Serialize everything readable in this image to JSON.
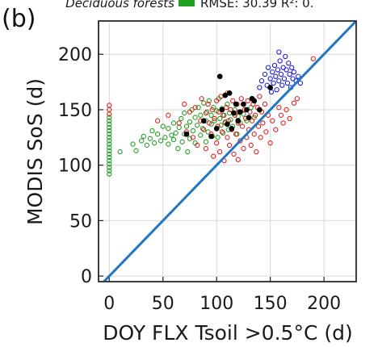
{
  "chart_data": {
    "type": "scatter",
    "panel_label": "(b)",
    "xlabel": "DOY FLX Tsoil >0.5°C (d)",
    "ylabel": "MODIS SoS (d)",
    "xlim": [
      -10,
      230
    ],
    "ylim": [
      -5,
      230
    ],
    "x_ticks": [
      0,
      50,
      100,
      150,
      200
    ],
    "y_ticks": [
      0,
      50,
      100,
      150,
      200
    ],
    "grid": true,
    "legend": {
      "placement": "top-right",
      "partial_text": "Deciduous forests",
      "stats_text": "RMSE: 30.39  R²: 0.",
      "swatch_color": "#1fa01f"
    },
    "one_to_one_line": {
      "color": "#1f77c4",
      "x": [
        -10,
        230
      ],
      "y": [
        -10,
        230
      ]
    },
    "series": [
      {
        "color": "#22a022",
        "marker": "open-circle",
        "points": [
          [
            0,
            92
          ],
          [
            0,
            95
          ],
          [
            0,
            98
          ],
          [
            0,
            101
          ],
          [
            0,
            104
          ],
          [
            0,
            107
          ],
          [
            0,
            110
          ],
          [
            0,
            113
          ],
          [
            0,
            116
          ],
          [
            0,
            119
          ],
          [
            0,
            122
          ],
          [
            0,
            125
          ],
          [
            0,
            128
          ],
          [
            0,
            131
          ],
          [
            0,
            134
          ],
          [
            0,
            137
          ],
          [
            0,
            140
          ],
          [
            0,
            143
          ],
          [
            10,
            112
          ],
          [
            22,
            119
          ],
          [
            25,
            113
          ],
          [
            30,
            122
          ],
          [
            32,
            126
          ],
          [
            35,
            118
          ],
          [
            38,
            124
          ],
          [
            40,
            131
          ],
          [
            42,
            120
          ],
          [
            45,
            128
          ],
          [
            48,
            122
          ],
          [
            50,
            135
          ],
          [
            52,
            125
          ],
          [
            55,
            119
          ],
          [
            55,
            133
          ],
          [
            58,
            127
          ],
          [
            60,
            123
          ],
          [
            60,
            138
          ],
          [
            62,
            129
          ],
          [
            64,
            115
          ],
          [
            65,
            134
          ],
          [
            67,
            142
          ],
          [
            68,
            121
          ],
          [
            70,
            128
          ],
          [
            70,
            147
          ],
          [
            72,
            135
          ],
          [
            73,
            112
          ],
          [
            75,
            124
          ],
          [
            75,
            139
          ],
          [
            77,
            150
          ],
          [
            78,
            131
          ],
          [
            80,
            120
          ],
          [
            80,
            143
          ],
          [
            82,
            136
          ],
          [
            83,
            152
          ],
          [
            85,
            127
          ],
          [
            85,
            145
          ],
          [
            87,
            133
          ],
          [
            88,
            156
          ],
          [
            90,
            121
          ],
          [
            90,
            140
          ],
          [
            91,
            148
          ],
          [
            92,
            130
          ],
          [
            93,
            158
          ],
          [
            95,
            137
          ],
          [
            95,
            145
          ],
          [
            96,
            126
          ],
          [
            97,
            152
          ],
          [
            98,
            140
          ],
          [
            100,
            133
          ],
          [
            100,
            149
          ],
          [
            101,
            125
          ],
          [
            102,
            160
          ],
          [
            103,
            142
          ],
          [
            104,
            136
          ],
          [
            105,
            151
          ],
          [
            106,
            129
          ],
          [
            107,
            145
          ],
          [
            108,
            139
          ],
          [
            110,
            155
          ],
          [
            111,
            132
          ],
          [
            112,
            147
          ],
          [
            113,
            141
          ],
          [
            115,
            135
          ],
          [
            117,
            150
          ],
          [
            119,
            128
          ],
          [
            120,
            144
          ],
          [
            122,
            138
          ],
          [
            125,
            146
          ],
          [
            128,
            140
          ],
          [
            132,
            152
          ],
          [
            135,
            143
          ]
        ]
      },
      {
        "color": "#e02020",
        "marker": "open-circle",
        "points": [
          [
            0,
            146
          ],
          [
            0,
            150
          ],
          [
            0,
            154
          ],
          [
            45,
            140
          ],
          [
            55,
            145
          ],
          [
            65,
            138
          ],
          [
            70,
            155
          ],
          [
            72,
            130
          ],
          [
            75,
            148
          ],
          [
            78,
            125
          ],
          [
            80,
            152
          ],
          [
            82,
            118
          ],
          [
            85,
            140
          ],
          [
            86,
            160
          ],
          [
            88,
            132
          ],
          [
            90,
            147
          ],
          [
            90,
            115
          ],
          [
            92,
            155
          ],
          [
            93,
            138
          ],
          [
            95,
            128
          ],
          [
            96,
            150
          ],
          [
            97,
            108
          ],
          [
            98,
            142
          ],
          [
            100,
            158
          ],
          [
            100,
            120
          ],
          [
            101,
            135
          ],
          [
            102,
            148
          ],
          [
            103,
            112
          ],
          [
            104,
            162
          ],
          [
            105,
            130
          ],
          [
            106,
            145
          ],
          [
            107,
            104
          ],
          [
            108,
            138
          ],
          [
            109,
            152
          ],
          [
            110,
            125
          ],
          [
            110,
            165
          ],
          [
            111,
            140
          ],
          [
            112,
            118
          ],
          [
            113,
            150
          ],
          [
            114,
            132
          ],
          [
            115,
            158
          ],
          [
            116,
            110
          ],
          [
            117,
            145
          ],
          [
            118,
            128
          ],
          [
            119,
            155
          ],
          [
            120,
            138
          ],
          [
            120,
            105
          ],
          [
            121,
            148
          ],
          [
            122,
            122
          ],
          [
            123,
            160
          ],
          [
            124,
            135
          ],
          [
            125,
            115
          ],
          [
            126,
            150
          ],
          [
            127,
            142
          ],
          [
            128,
            125
          ],
          [
            129,
            158
          ],
          [
            130,
            132
          ],
          [
            131,
            148
          ],
          [
            132,
            118
          ],
          [
            133,
            140
          ],
          [
            134,
            155
          ],
          [
            135,
            128
          ],
          [
            136,
            145
          ],
          [
            137,
            112
          ],
          [
            138,
            152
          ],
          [
            139,
            135
          ],
          [
            140,
            162
          ],
          [
            141,
            125
          ],
          [
            142,
            148
          ],
          [
            143,
            138
          ],
          [
            145,
            155
          ],
          [
            146,
            130
          ],
          [
            148,
            145
          ],
          [
            150,
            120
          ],
          [
            152,
            140
          ],
          [
            155,
            132
          ],
          [
            158,
            152
          ],
          [
            160,
            145
          ],
          [
            162,
            138
          ],
          [
            165,
            150
          ],
          [
            168,
            142
          ],
          [
            172,
            156
          ],
          [
            175,
            160
          ],
          [
            190,
            196
          ]
        ]
      },
      {
        "color": "#1a1ae0",
        "marker": "open-circle",
        "points": [
          [
            140,
            170
          ],
          [
            142,
            176
          ],
          [
            145,
            182
          ],
          [
            147,
            172
          ],
          [
            148,
            188
          ],
          [
            150,
            178
          ],
          [
            151,
            166
          ],
          [
            152,
            184
          ],
          [
            153,
            174
          ],
          [
            154,
            190
          ],
          [
            155,
            180
          ],
          [
            156,
            168
          ],
          [
            157,
            186
          ],
          [
            158,
            176
          ],
          [
            159,
            194
          ],
          [
            160,
            182
          ],
          [
            161,
            172
          ],
          [
            162,
            188
          ],
          [
            163,
            178
          ],
          [
            164,
            198
          ],
          [
            165,
            186
          ],
          [
            166,
            174
          ],
          [
            167,
            192
          ],
          [
            168,
            182
          ],
          [
            169,
            170
          ],
          [
            170,
            188
          ],
          [
            171,
            178
          ],
          [
            172,
            184
          ],
          [
            174,
            176
          ],
          [
            176,
            180
          ],
          [
            178,
            174
          ],
          [
            158,
            202
          ]
        ]
      },
      {
        "color": "#000000",
        "marker": "filled-circle",
        "points": [
          [
            72,
            128
          ],
          [
            88,
            140
          ],
          [
            95,
            126
          ],
          [
            100,
            133
          ],
          [
            103,
            180
          ],
          [
            105,
            150
          ],
          [
            108,
            163
          ],
          [
            110,
            137
          ],
          [
            112,
            165
          ],
          [
            114,
            133
          ],
          [
            116,
            147
          ],
          [
            118,
            155
          ],
          [
            120,
            140
          ],
          [
            122,
            148
          ],
          [
            125,
            155
          ],
          [
            128,
            150
          ],
          [
            130,
            143
          ],
          [
            133,
            160
          ],
          [
            135,
            158
          ],
          [
            140,
            150
          ],
          [
            150,
            170
          ]
        ]
      }
    ]
  }
}
